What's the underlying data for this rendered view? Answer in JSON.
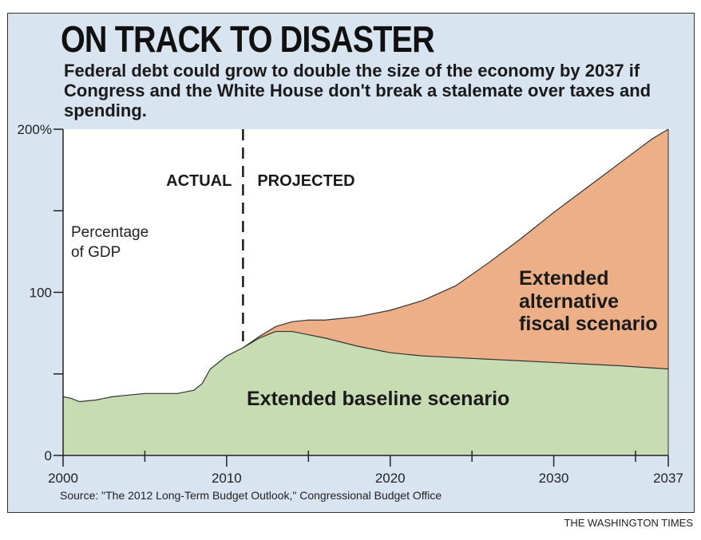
{
  "title": "ON TRACK TO DISASTER",
  "subtitle": "Federal debt could grow to double the size of the economy by 2037 if Congress and the White House don't break a stalemate over taxes and spending.",
  "source": "Source: \"The 2012 Long-Term Budget Outlook,\" Congressional Budget Office",
  "credit": "THE WASHINGTON TIMES",
  "colors": {
    "background": "#d9e4f1",
    "plot_background": "#ffffff",
    "baseline_fill": "#c8dcb4",
    "alternative_fill": "#edaf88",
    "line": "#333333"
  },
  "chart_data": {
    "type": "area",
    "ylabel_lines": [
      "Percentage",
      "of GDP"
    ],
    "y_tick_labels": [
      "200%",
      "100",
      "0"
    ],
    "y_tick_values": [
      200,
      100,
      0
    ],
    "y_minor_ticks": [
      50,
      150
    ],
    "x_tick_labels": [
      "2000",
      "2010",
      "2020",
      "2030",
      "2037"
    ],
    "x_tick_values": [
      2000,
      2010,
      2020,
      2030,
      2037
    ],
    "x_minor_ticks": [
      2005,
      2015,
      2025,
      2035
    ],
    "xlim": [
      2000,
      2037
    ],
    "ylim": [
      0,
      200
    ],
    "divider": {
      "x": 2011,
      "left_label": "ACTUAL",
      "right_label": "PROJECTED"
    },
    "series": [
      {
        "name": "Extended baseline scenario",
        "label_lines": [
          "Extended baseline scenario"
        ],
        "color": "#c8dcb4",
        "points": [
          [
            2000,
            36
          ],
          [
            2000.5,
            35
          ],
          [
            2001,
            33
          ],
          [
            2002,
            34
          ],
          [
            2003,
            36
          ],
          [
            2004,
            37
          ],
          [
            2005,
            38
          ],
          [
            2006,
            38
          ],
          [
            2007,
            38
          ],
          [
            2008,
            40
          ],
          [
            2008.5,
            44
          ],
          [
            2009,
            53
          ],
          [
            2010,
            61
          ],
          [
            2011,
            66
          ],
          [
            2012,
            72
          ],
          [
            2013,
            76
          ],
          [
            2014,
            76
          ],
          [
            2015,
            74
          ],
          [
            2016,
            72
          ],
          [
            2018,
            67
          ],
          [
            2020,
            63
          ],
          [
            2022,
            61
          ],
          [
            2024,
            60
          ],
          [
            2026,
            59
          ],
          [
            2028,
            58
          ],
          [
            2030,
            57
          ],
          [
            2032,
            56
          ],
          [
            2034,
            55
          ],
          [
            2037,
            53
          ]
        ]
      },
      {
        "name": "Extended alternative fiscal scenario",
        "label_lines": [
          "Extended",
          "alternative",
          "fiscal scenario"
        ],
        "color": "#edaf88",
        "points": [
          [
            2011,
            66
          ],
          [
            2012,
            73
          ],
          [
            2013,
            79
          ],
          [
            2014,
            82
          ],
          [
            2015,
            83
          ],
          [
            2016,
            83
          ],
          [
            2018,
            85
          ],
          [
            2020,
            89
          ],
          [
            2022,
            95
          ],
          [
            2024,
            104
          ],
          [
            2026,
            118
          ],
          [
            2028,
            133
          ],
          [
            2030,
            149
          ],
          [
            2032,
            164
          ],
          [
            2034,
            179
          ],
          [
            2036,
            194
          ],
          [
            2037,
            200
          ]
        ]
      }
    ]
  }
}
